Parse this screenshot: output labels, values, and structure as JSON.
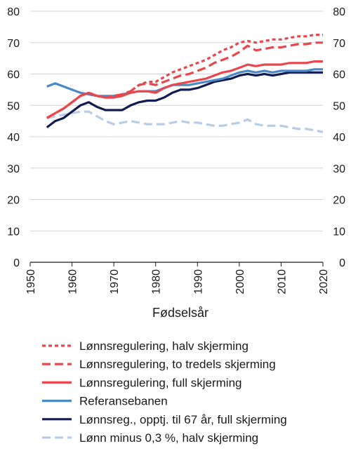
{
  "chart_data": {
    "type": "line",
    "xlabel": "Fødselsår",
    "ylabel": "",
    "xlim": [
      1950,
      2020
    ],
    "ylim": [
      0,
      80
    ],
    "x_ticks": [
      "1950",
      "1960",
      "1970",
      "1980",
      "1990",
      "2000",
      "2010",
      "2020"
    ],
    "y_ticks": [
      "0",
      "10",
      "20",
      "30",
      "40",
      "50",
      "60",
      "70",
      "80"
    ],
    "grid": "horizontal",
    "legend_position": "bottom",
    "x": [
      1954,
      1956,
      1958,
      1960,
      1962,
      1964,
      1966,
      1968,
      1970,
      1972,
      1974,
      1976,
      1978,
      1980,
      1982,
      1984,
      1986,
      1988,
      1990,
      1992,
      1994,
      1996,
      1998,
      2000,
      2002,
      2004,
      2006,
      2008,
      2010,
      2012,
      2014,
      2016,
      2018,
      2020
    ],
    "series": [
      {
        "name": "Lønnsregulering, halv skjerming",
        "color": "#e8474d",
        "dash": "dotted",
        "values": [
          46,
          47.5,
          49,
          51,
          53,
          54,
          53,
          52.5,
          53,
          53.5,
          54.5,
          56.5,
          57.5,
          57.5,
          59,
          60.5,
          61.5,
          62.5,
          63.5,
          64.5,
          66,
          67.5,
          68.5,
          70,
          70.5,
          70,
          70.5,
          71,
          71,
          71.5,
          72,
          72,
          72.5,
          72.5
        ]
      },
      {
        "name": "Lønnsregulering, to tredels skjerming",
        "color": "#e8474d",
        "dash": "dashed",
        "values": [
          46,
          47.5,
          49,
          51,
          53,
          54,
          53,
          52.5,
          53,
          53.5,
          54.5,
          56.5,
          57,
          56.5,
          57.5,
          58.5,
          59.5,
          60,
          61,
          62,
          63.5,
          64.5,
          65.5,
          67,
          69,
          67.5,
          68,
          68.5,
          68.5,
          69,
          69.5,
          69.5,
          70,
          70
        ]
      },
      {
        "name": "Lønnsregulering, full skjerming",
        "color": "#e8474d",
        "dash": "solid",
        "values": [
          46,
          47.5,
          49,
          51,
          53,
          54,
          53,
          52.5,
          52.5,
          53,
          54,
          54.5,
          54.5,
          54,
          55.5,
          56.5,
          57,
          57.5,
          58,
          58.5,
          59.5,
          60.5,
          61,
          62,
          63,
          62.5,
          63,
          63,
          63,
          63.5,
          63.5,
          63.5,
          64,
          64
        ]
      },
      {
        "name": "Referansebanen",
        "color": "#4b88c7",
        "dash": "solid",
        "values": [
          56,
          57,
          56,
          55,
          54,
          53.5,
          53,
          53,
          53,
          53.5,
          54,
          54.5,
          54.5,
          54.5,
          55.5,
          56.5,
          56.5,
          56.5,
          57,
          57.5,
          58,
          58.5,
          59.5,
          60.5,
          61,
          60.5,
          61,
          60.5,
          61,
          61,
          61,
          61,
          61.5,
          61.5
        ]
      },
      {
        "name": "Lønnsreg., opptj. til 67 år, full skjerming",
        "color": "#121c4e",
        "dash": "solid",
        "values": [
          43,
          45,
          46,
          48,
          50,
          51,
          49.5,
          48.5,
          48.5,
          48.5,
          50,
          51,
          51.5,
          51.5,
          52.5,
          54,
          55,
          55,
          55.5,
          56.5,
          57.5,
          58,
          58.5,
          59.5,
          60,
          59.5,
          60,
          59.5,
          60,
          60.5,
          60.5,
          60.5,
          60.5,
          60.5
        ]
      },
      {
        "name": "Lønn minus 0,3 %, halv skjerming",
        "color": "#b8cce8",
        "dash": "dashed",
        "values": [
          46,
          46.5,
          47,
          47.5,
          48,
          48,
          46.5,
          45,
          44,
          44.5,
          45,
          44.5,
          44,
          44,
          44,
          44.5,
          45,
          44.5,
          44.5,
          44,
          43.5,
          43.5,
          44,
          44.5,
          45.5,
          44,
          43.5,
          43.5,
          43.5,
          43,
          42.5,
          42.5,
          42,
          41.5
        ]
      }
    ]
  }
}
